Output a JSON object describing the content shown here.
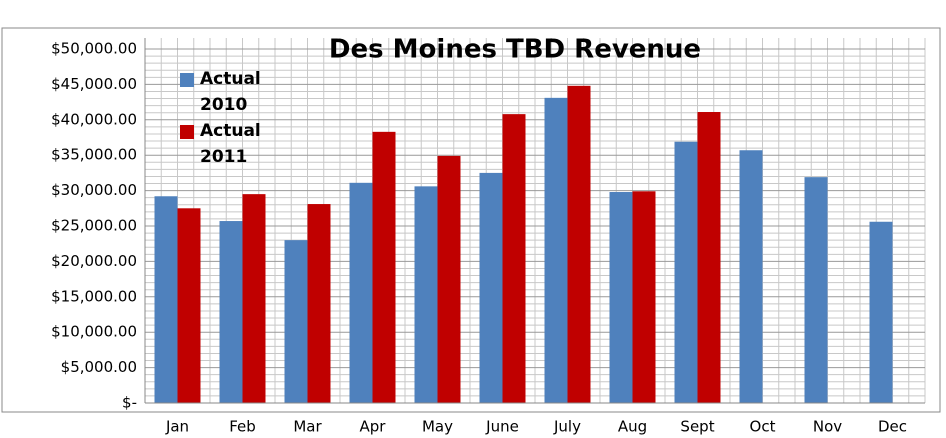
{
  "chart_data": {
    "type": "bar",
    "title": "Des Moines TBD Revenue",
    "categories": [
      "Jan",
      "Feb",
      "Mar",
      "Apr",
      "May",
      "June",
      "July",
      "Aug",
      "Sept",
      "Oct",
      "Nov",
      "Dec"
    ],
    "series": [
      {
        "name": "Actual 2010",
        "color": "#4f81bd",
        "values": [
          29200,
          25700,
          23000,
          31100,
          30600,
          32500,
          43100,
          29800,
          36900,
          35700,
          31900,
          25600
        ]
      },
      {
        "name": "Actual 2011",
        "color": "#c00000",
        "values": [
          27500,
          29500,
          28100,
          38300,
          34900,
          40800,
          44800,
          29900,
          41100,
          null,
          null,
          null
        ]
      }
    ],
    "ylim": [
      0,
      50000
    ],
    "yticks": [
      {
        "value": 0,
        "label": "$-"
      },
      {
        "value": 5000,
        "label": "$5,000.00"
      },
      {
        "value": 10000,
        "label": "$10,000.00"
      },
      {
        "value": 15000,
        "label": "$15,000.00"
      },
      {
        "value": 20000,
        "label": "$20,000.00"
      },
      {
        "value": 25000,
        "label": "$25,000.00"
      },
      {
        "value": 30000,
        "label": "$30,000.00"
      },
      {
        "value": 35000,
        "label": "$35,000.00"
      },
      {
        "value": 40000,
        "label": "$40,000.00"
      },
      {
        "value": 45000,
        "label": "$45,000.00"
      },
      {
        "value": 50000,
        "label": "$50,000.00"
      }
    ],
    "grid": true,
    "legend": "top-left"
  }
}
